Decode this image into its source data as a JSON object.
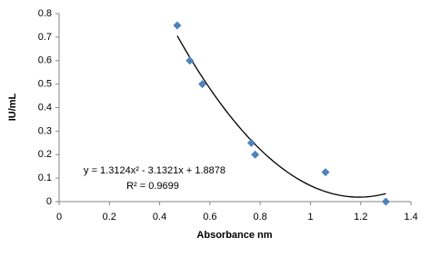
{
  "chart_data": {
    "type": "scatter",
    "x_label": "Absorbance nm",
    "y_label": "IU/mL",
    "series": [
      {
        "color": "#4f81bd",
        "x": [
          0.47,
          0.52,
          0.57,
          0.765,
          0.78,
          1.06,
          1.3
        ],
        "values": [
          0.75,
          0.6,
          0.5,
          0.25,
          0.2,
          0.125,
          0
        ]
      }
    ],
    "trendline": {
      "equation": "y = 1.3124x² - 3.1321x + 1.8878",
      "r_squared": "R² = 0.9699",
      "coefficients": [
        1.3124,
        -3.1321,
        1.8878
      ],
      "x_range": [
        0.47,
        1.3
      ],
      "color": "#000000"
    },
    "xlim": [
      0,
      1.4
    ],
    "xticks": [
      0,
      0.2,
      0.4,
      0.6,
      0.8,
      1,
      1.2,
      1.4
    ],
    "ylim": [
      0,
      0.8
    ],
    "yticks": [
      0,
      0.1,
      0.2,
      0.3,
      0.4,
      0.5,
      0.6,
      0.7,
      0.8
    ],
    "grid": false
  }
}
